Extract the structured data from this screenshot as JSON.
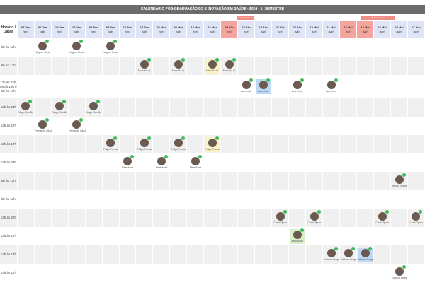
{
  "header": {
    "title": "CALENDÁRIO PÓS-GRADUAÇÃO DS E INOVAÇÃO EM SAÚDE - 2024 - 1º SEMESTRE",
    "corner": "Horário / Datas"
  },
  "banners": [
    {
      "label": "Encerramento de Módulo",
      "from": 12,
      "to": 12
    },
    {
      "label": "Semana Livre",
      "from": 19,
      "to": 20
    }
  ],
  "columns": [
    {
      "date": "05 Jan",
      "day": "(sex)"
    },
    {
      "date": "06 Jan",
      "day": "(sáb)"
    },
    {
      "date": "19 Jan",
      "day": "(sex)"
    },
    {
      "date": "20 Jan",
      "day": "(sáb)"
    },
    {
      "date": "02 Fev",
      "day": "(sex)"
    },
    {
      "date": "03 Fev",
      "day": "(sáb)"
    },
    {
      "date": "16 Fev",
      "day": "(sex)"
    },
    {
      "date": "17 Fev",
      "day": "(sáb)"
    },
    {
      "date": "01 Mar",
      "day": "(sex)"
    },
    {
      "date": "02 Mar",
      "day": "(sáb)"
    },
    {
      "date": "15 Mar",
      "day": "(sex)"
    },
    {
      "date": "16 Mar",
      "day": "(sáb)"
    },
    {
      "date": "05 Abr",
      "day": "(sex)",
      "red": true
    },
    {
      "date": "12 Abr",
      "day": "(sex)"
    },
    {
      "date": "13 Abr",
      "day": "(sáb)"
    },
    {
      "date": "26 Abr",
      "day": "(sex)"
    },
    {
      "date": "27 Abr",
      "day": "(sáb)"
    },
    {
      "date": "10 Mai",
      "day": "(sex)"
    },
    {
      "date": "11 Mai",
      "day": "(sáb)"
    },
    {
      "date": "17 Mai",
      "day": "(sex)",
      "red": true
    },
    {
      "date": "18 Mai",
      "day": "(sáb)",
      "red": true
    },
    {
      "date": "24 Mai",
      "day": "(sex)"
    },
    {
      "date": "25 Mai",
      "day": "(sáb)"
    },
    {
      "date": "07 Jun",
      "day": "(sex)"
    }
  ],
  "rows": [
    {
      "time": "8h às 12h",
      "people": [
        {
          "col": 1,
          "name": "Vágner Lima"
        },
        {
          "col": 3,
          "name": "Vágner Lima"
        },
        {
          "col": 5,
          "name": "Vágner Lima"
        }
      ]
    },
    {
      "time": "8h às 12h",
      "people": [
        {
          "col": 7,
          "name": "Manuela Q."
        },
        {
          "col": 9,
          "name": "Manuela Q."
        },
        {
          "col": 11,
          "name": "Manuela Q.",
          "highlight": "yellow"
        },
        {
          "col": 12,
          "name": "Manuela Q."
        }
      ]
    },
    {
      "time": "13h às 22h, 8h às 12h e 8h às 17h",
      "people": [
        {
          "col": 13,
          "name": "Ana Kobe"
        },
        {
          "col": 14,
          "name": "Ana Kobe",
          "highlight": "blue"
        },
        {
          "col": 16,
          "name": "Ana Kobe"
        },
        {
          "col": 18,
          "name": "Ana Kobe"
        }
      ]
    },
    {
      "time": "13h às 23h",
      "people": [
        {
          "col": 0,
          "name": "Diogo Camillo"
        },
        {
          "col": 2,
          "name": "Diogo Camillo"
        },
        {
          "col": 4,
          "name": "Diogo Camillo"
        }
      ]
    },
    {
      "time": "13h às 17h",
      "people": [
        {
          "col": 1,
          "name": "Fernanda Gluci"
        },
        {
          "col": 3,
          "name": "Fernanda Gluci"
        }
      ]
    },
    {
      "time": "13h às 17h",
      "people": [
        {
          "col": 5,
          "name": "Felipe Ferraz"
        },
        {
          "col": 7,
          "name": "Felipe Ferraz"
        },
        {
          "col": 9,
          "name": "Felipe Ferraz"
        },
        {
          "col": 11,
          "name": "Felipe Ferraz",
          "highlight": "yellow"
        }
      ]
    },
    {
      "time": "13h às 23h",
      "people": [
        {
          "col": 6,
          "name": "Aline Ande"
        },
        {
          "col": 8,
          "name": "Aline Ande"
        },
        {
          "col": 10,
          "name": "Aline Ande"
        }
      ]
    },
    {
      "time": "8h às 12h",
      "people": [
        {
          "col": 22,
          "name": "Renata Wong"
        }
      ]
    },
    {
      "time": "8h às 12h",
      "people": []
    },
    {
      "time": "13h às 22h",
      "people": [
        {
          "col": 15,
          "name": "Carla Ojeda"
        },
        {
          "col": 17,
          "name": "Carla Ojeda"
        },
        {
          "col": 21,
          "name": "Carla Ojeda"
        },
        {
          "col": 23,
          "name": "Carla Ojeda"
        }
      ]
    },
    {
      "time": "13h às 17h",
      "people": [
        {
          "col": 16,
          "name": "Aline Ande",
          "highlight": "green"
        }
      ]
    },
    {
      "time": "13h às 17h",
      "people": [
        {
          "col": 18,
          "name": "Fabiano Braga"
        },
        {
          "col": 19,
          "name": "Fabiano Braga"
        },
        {
          "col": 20,
          "name": "Fabiano Braga",
          "highlight": "blue"
        }
      ]
    },
    {
      "time": "13h às 17h",
      "people": [
        {
          "col": 22,
          "name": "Luciano Alves"
        }
      ]
    }
  ]
}
